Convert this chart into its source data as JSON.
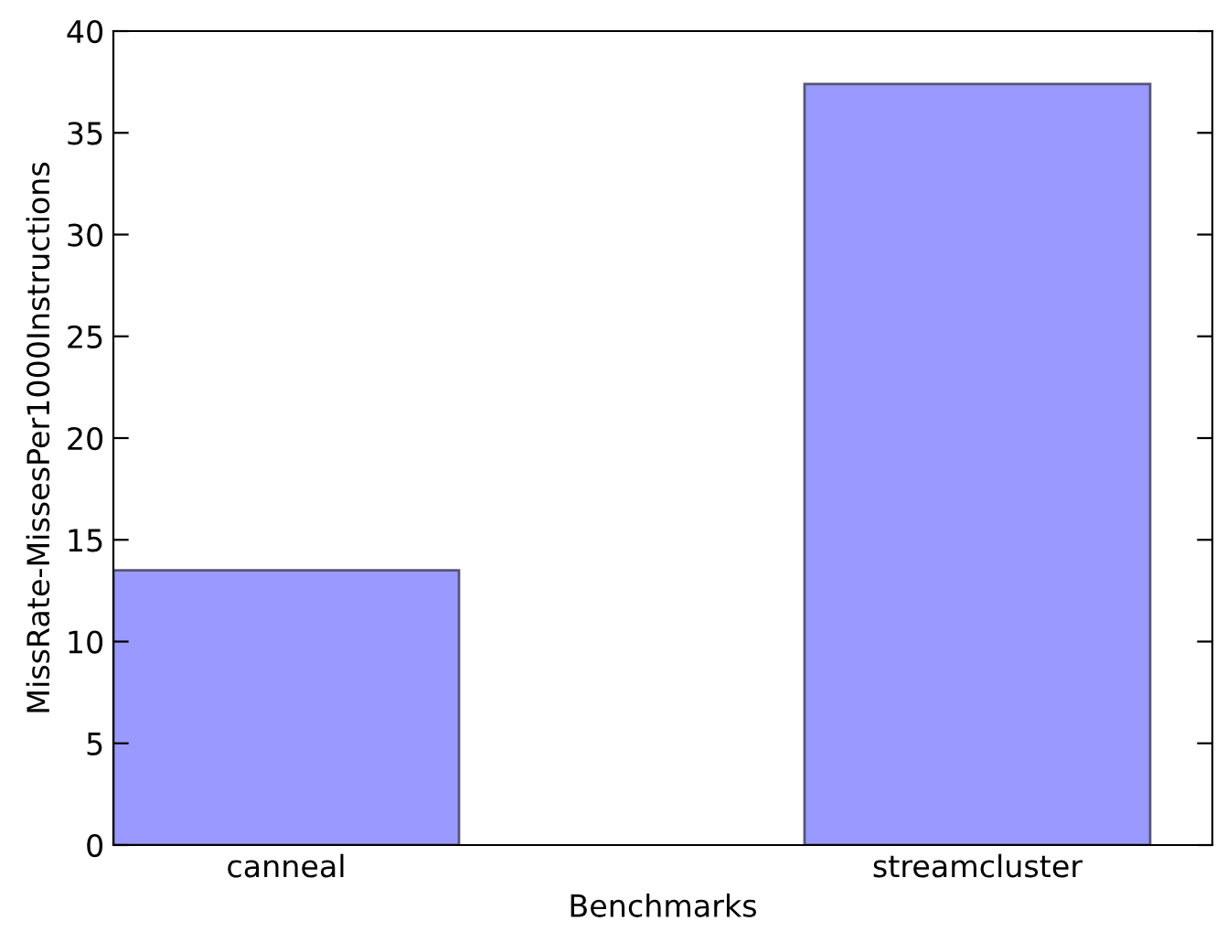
{
  "chart_data": {
    "type": "bar",
    "xlabel": "Benchmarks",
    "ylabel": "MissRate-MissesPer1000Instructions",
    "categories": [
      "canneal",
      "streamcluster"
    ],
    "values": [
      13.5,
      37.4
    ],
    "color": "#9999ff",
    "ylim": [
      0,
      40
    ],
    "yticks": [
      0,
      5,
      10,
      15,
      20,
      25,
      30,
      35,
      40
    ],
    "grid": false,
    "legend": false
  }
}
